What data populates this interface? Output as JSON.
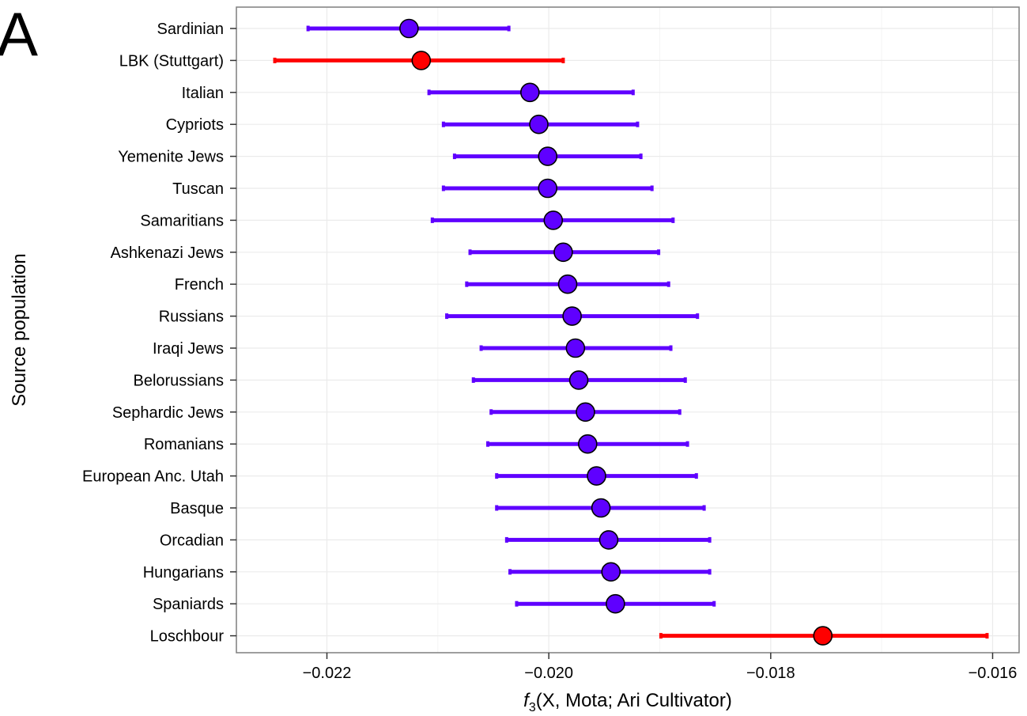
{
  "panel_label": "A",
  "chart_data": {
    "type": "scatter",
    "subtype": "point-with-error-bars",
    "orientation": "horizontal",
    "xlabel": {
      "prefix": "f",
      "subscript": "3",
      "rest": "(X, Mota; Ari Cultivator)"
    },
    "ylabel": "Source population",
    "xlim": [
      -0.0228,
      -0.0157
    ],
    "xticks": [
      -0.022,
      -0.02,
      -0.018,
      -0.016
    ],
    "xtick_labels": [
      "−0.022",
      "−0.020",
      "−0.018",
      "−0.016"
    ],
    "grid": true,
    "colors": {
      "default": "#5f00ff",
      "highlight": "#ff0000",
      "panel_border": "#7f7f7f",
      "grid": "#ebebeb"
    },
    "points": [
      {
        "label": "Sardinian",
        "value": -0.02126,
        "lower": -0.02217,
        "upper": -0.02036,
        "highlight": false
      },
      {
        "label": "LBK (Stuttgart)",
        "value": -0.02115,
        "lower": -0.02247,
        "upper": -0.01987,
        "highlight": true
      },
      {
        "label": "Italian",
        "value": -0.02017,
        "lower": -0.02108,
        "upper": -0.01924,
        "highlight": false
      },
      {
        "label": "Cypriots",
        "value": -0.02009,
        "lower": -0.02095,
        "upper": -0.0192,
        "highlight": false
      },
      {
        "label": "Yemenite Jews",
        "value": -0.02001,
        "lower": -0.02085,
        "upper": -0.01917,
        "highlight": false
      },
      {
        "label": "Tuscan",
        "value": -0.02001,
        "lower": -0.02095,
        "upper": -0.01907,
        "highlight": false
      },
      {
        "label": "Samaritians",
        "value": -0.01996,
        "lower": -0.02105,
        "upper": -0.01888,
        "highlight": false
      },
      {
        "label": "Ashkenazi Jews",
        "value": -0.01987,
        "lower": -0.02071,
        "upper": -0.01901,
        "highlight": false
      },
      {
        "label": "French",
        "value": -0.01983,
        "lower": -0.02074,
        "upper": -0.01892,
        "highlight": false
      },
      {
        "label": "Russians",
        "value": -0.01979,
        "lower": -0.02092,
        "upper": -0.01866,
        "highlight": false
      },
      {
        "label": "Iraqi Jews",
        "value": -0.01976,
        "lower": -0.02061,
        "upper": -0.0189,
        "highlight": false
      },
      {
        "label": "Belorussians",
        "value": -0.01973,
        "lower": -0.02068,
        "upper": -0.01877,
        "highlight": false
      },
      {
        "label": "Sephardic Jews",
        "value": -0.01967,
        "lower": -0.02052,
        "upper": -0.01882,
        "highlight": false
      },
      {
        "label": "Romanians",
        "value": -0.01965,
        "lower": -0.02055,
        "upper": -0.01875,
        "highlight": false
      },
      {
        "label": "European Anc. Utah",
        "value": -0.01957,
        "lower": -0.02047,
        "upper": -0.01867,
        "highlight": false
      },
      {
        "label": "Basque",
        "value": -0.01953,
        "lower": -0.02047,
        "upper": -0.0186,
        "highlight": false
      },
      {
        "label": "Orcadian",
        "value": -0.01946,
        "lower": -0.02038,
        "upper": -0.01855,
        "highlight": false
      },
      {
        "label": "Hungarians",
        "value": -0.01944,
        "lower": -0.02035,
        "upper": -0.01855,
        "highlight": false
      },
      {
        "label": "Spaniards",
        "value": -0.0194,
        "lower": -0.02029,
        "upper": -0.01851,
        "highlight": false
      },
      {
        "label": "Loschbour",
        "value": -0.01753,
        "lower": -0.01899,
        "upper": -0.01605,
        "highlight": true
      }
    ]
  }
}
